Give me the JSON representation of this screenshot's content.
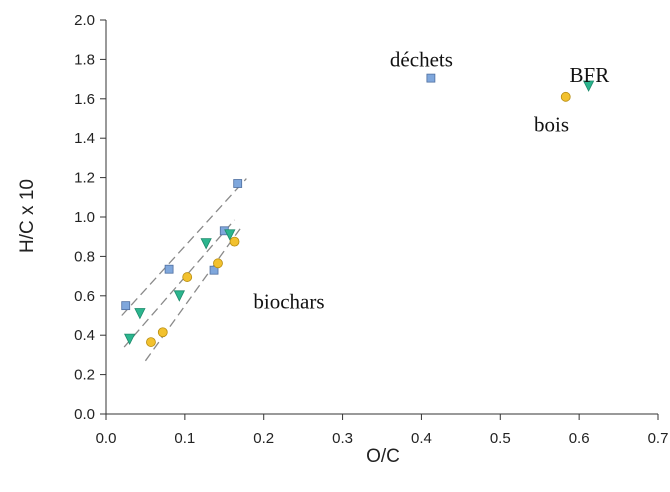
{
  "chart_data": {
    "type": "scatter",
    "xlabel": "O/C",
    "ylabel": "H/C x 10",
    "xlim": [
      0.0,
      0.7
    ],
    "ylim": [
      0.0,
      2.0
    ],
    "x_ticks": [
      "0.0",
      "0.1",
      "0.2",
      "0.3",
      "0.4",
      "0.5",
      "0.6",
      "0.7"
    ],
    "y_ticks": [
      "0.0",
      "0.2",
      "0.4",
      "0.6",
      "0.8",
      "1.0",
      "1.2",
      "1.4",
      "1.6",
      "1.8",
      "2.0"
    ],
    "grid": false,
    "series": [
      {
        "marker": "square",
        "color": "#7fa7dc",
        "points": [
          {
            "x": 0.025,
            "y": 0.55
          },
          {
            "x": 0.08,
            "y": 0.735
          },
          {
            "x": 0.137,
            "y": 0.73
          },
          {
            "x": 0.15,
            "y": 0.93
          },
          {
            "x": 0.167,
            "y": 1.17
          },
          {
            "x": 0.412,
            "y": 1.705
          }
        ]
      },
      {
        "marker": "triangle-down",
        "color": "#2bb58e",
        "points": [
          {
            "x": 0.03,
            "y": 0.38
          },
          {
            "x": 0.043,
            "y": 0.51
          },
          {
            "x": 0.093,
            "y": 0.6
          },
          {
            "x": 0.127,
            "y": 0.865
          },
          {
            "x": 0.157,
            "y": 0.91
          },
          {
            "x": 0.612,
            "y": 1.665
          }
        ]
      },
      {
        "marker": "circle",
        "color": "#f2c12e",
        "points": [
          {
            "x": 0.057,
            "y": 0.365
          },
          {
            "x": 0.072,
            "y": 0.415
          },
          {
            "x": 0.103,
            "y": 0.695
          },
          {
            "x": 0.142,
            "y": 0.765
          },
          {
            "x": 0.163,
            "y": 0.875
          },
          {
            "x": 0.583,
            "y": 1.61
          }
        ]
      }
    ],
    "trend_lines": [
      {
        "x": [
          0.02,
          0.178
        ],
        "y": [
          0.5,
          1.195
        ]
      },
      {
        "x": [
          0.023,
          0.163
        ],
        "y": [
          0.34,
          0.985
        ]
      },
      {
        "x": [
          0.05,
          0.17
        ],
        "y": [
          0.27,
          0.94
        ]
      }
    ],
    "annotations": [
      {
        "text": "déchets",
        "x": 0.4,
        "y": 1.8
      },
      {
        "text": "BFR",
        "x": 0.613,
        "y": 1.72
      },
      {
        "text": "bois",
        "x": 0.565,
        "y": 1.47
      },
      {
        "text": "biochars",
        "x": 0.232,
        "y": 0.57
      }
    ]
  }
}
